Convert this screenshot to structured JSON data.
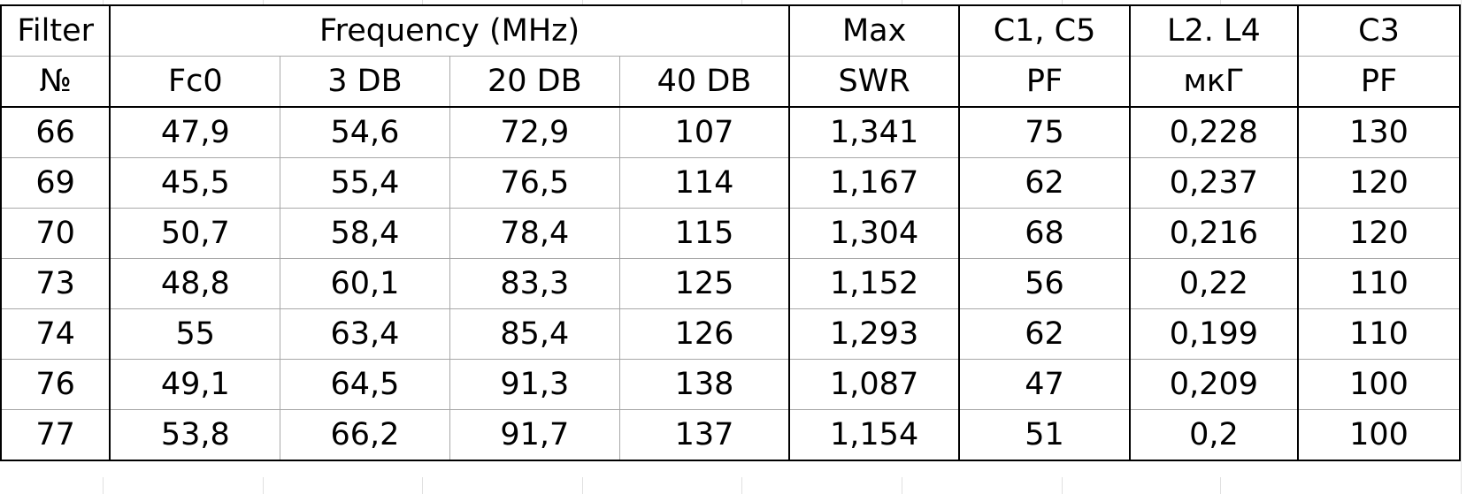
{
  "header": {
    "filter_top": "Filter",
    "filter_bottom": "№",
    "frequency_group": "Frequency (MHz)",
    "fc0": "Fc0",
    "db3": "3 DB",
    "db20": "20 DB",
    "db40": "40 DB",
    "swr_top": "Max",
    "swr_bottom": "SWR",
    "c1c5_top": "C1, C5",
    "c1c5_bottom": "PF",
    "l2l4_top": "L2. L4",
    "l2l4_bottom": "мкГ",
    "c3_top": "C3",
    "c3_bottom": "PF"
  },
  "rows": [
    {
      "filter": "66",
      "fc0": "47,9",
      "db3": "54,6",
      "db20": "72,9",
      "db40": "107",
      "swr": "1,341",
      "c1c5": "75",
      "l2l4": "0,228",
      "c3": "130"
    },
    {
      "filter": "69",
      "fc0": "45,5",
      "db3": "55,4",
      "db20": "76,5",
      "db40": "114",
      "swr": "1,167",
      "c1c5": "62",
      "l2l4": "0,237",
      "c3": "120"
    },
    {
      "filter": "70",
      "fc0": "50,7",
      "db3": "58,4",
      "db20": "78,4",
      "db40": "115",
      "swr": "1,304",
      "c1c5": "68",
      "l2l4": "0,216",
      "c3": "120"
    },
    {
      "filter": "73",
      "fc0": "48,8",
      "db3": "60,1",
      "db20": "83,3",
      "db40": "125",
      "swr": "1,152",
      "c1c5": "56",
      "l2l4": "0,22",
      "c3": "110"
    },
    {
      "filter": "74",
      "fc0": "55",
      "db3": "63,4",
      "db20": "85,4",
      "db40": "126",
      "swr": "1,293",
      "c1c5": "62",
      "l2l4": "0,199",
      "c3": "110"
    },
    {
      "filter": "76",
      "fc0": "49,1",
      "db3": "64,5",
      "db20": "91,3",
      "db40": "138",
      "swr": "1,087",
      "c1c5": "47",
      "l2l4": "0,209",
      "c3": "100"
    },
    {
      "filter": "77",
      "fc0": "53,8",
      "db3": "66,2",
      "db20": "91,7",
      "db40": "137",
      "swr": "1,154",
      "c1c5": "51",
      "l2l4": "0,2",
      "c3": "100"
    }
  ]
}
